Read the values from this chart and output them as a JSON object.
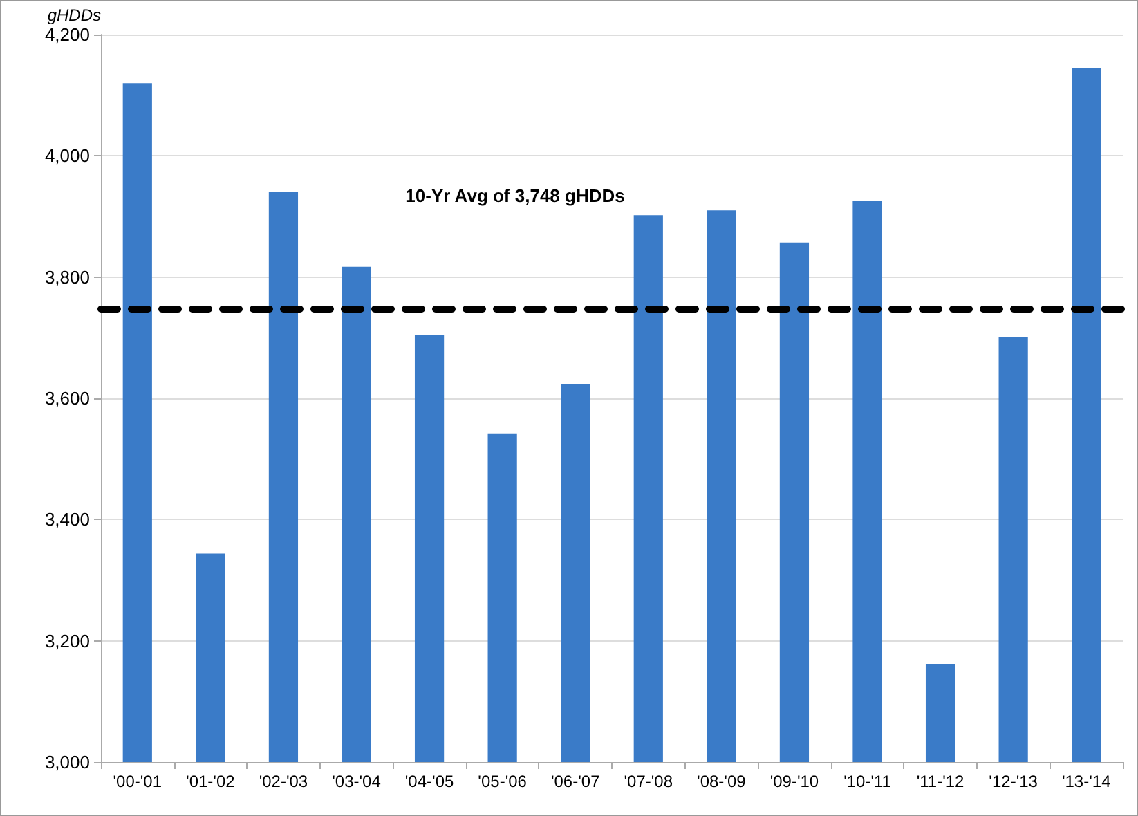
{
  "chart_data": {
    "type": "bar",
    "ylabel": "gHDDs",
    "categories": [
      "'00-'01",
      "'01-'02",
      "'02-'03",
      "'03-'04",
      "'04-'05",
      "'05-'06",
      "'06-'07",
      "'07-'08",
      "'08-'09",
      "'09-'10",
      "'10-'11",
      "'11-'12",
      "'12-'13",
      "'13-'14"
    ],
    "values": [
      4120,
      3344,
      3940,
      3817,
      3705,
      3542,
      3623,
      3902,
      3910,
      3857,
      3926,
      3162,
      3701,
      4144
    ],
    "color": "#3a7bc8",
    "ylim": [
      3000,
      4200
    ],
    "yticks": [
      {
        "value": 3000,
        "label": "3,000"
      },
      {
        "value": 3200,
        "label": "3,200"
      },
      {
        "value": 3400,
        "label": "3,400"
      },
      {
        "value": 3600,
        "label": "3,600"
      },
      {
        "value": 3800,
        "label": "3,800"
      },
      {
        "value": 4000,
        "label": "4,000"
      },
      {
        "value": 4200,
        "label": "4,200"
      }
    ],
    "grid": "y",
    "ref_lines": [
      {
        "axis": "y",
        "value": 3748,
        "label": "10-Yr Avg of 3,748 gHDDs",
        "color": "#000000",
        "line_style": "dashed"
      }
    ]
  }
}
